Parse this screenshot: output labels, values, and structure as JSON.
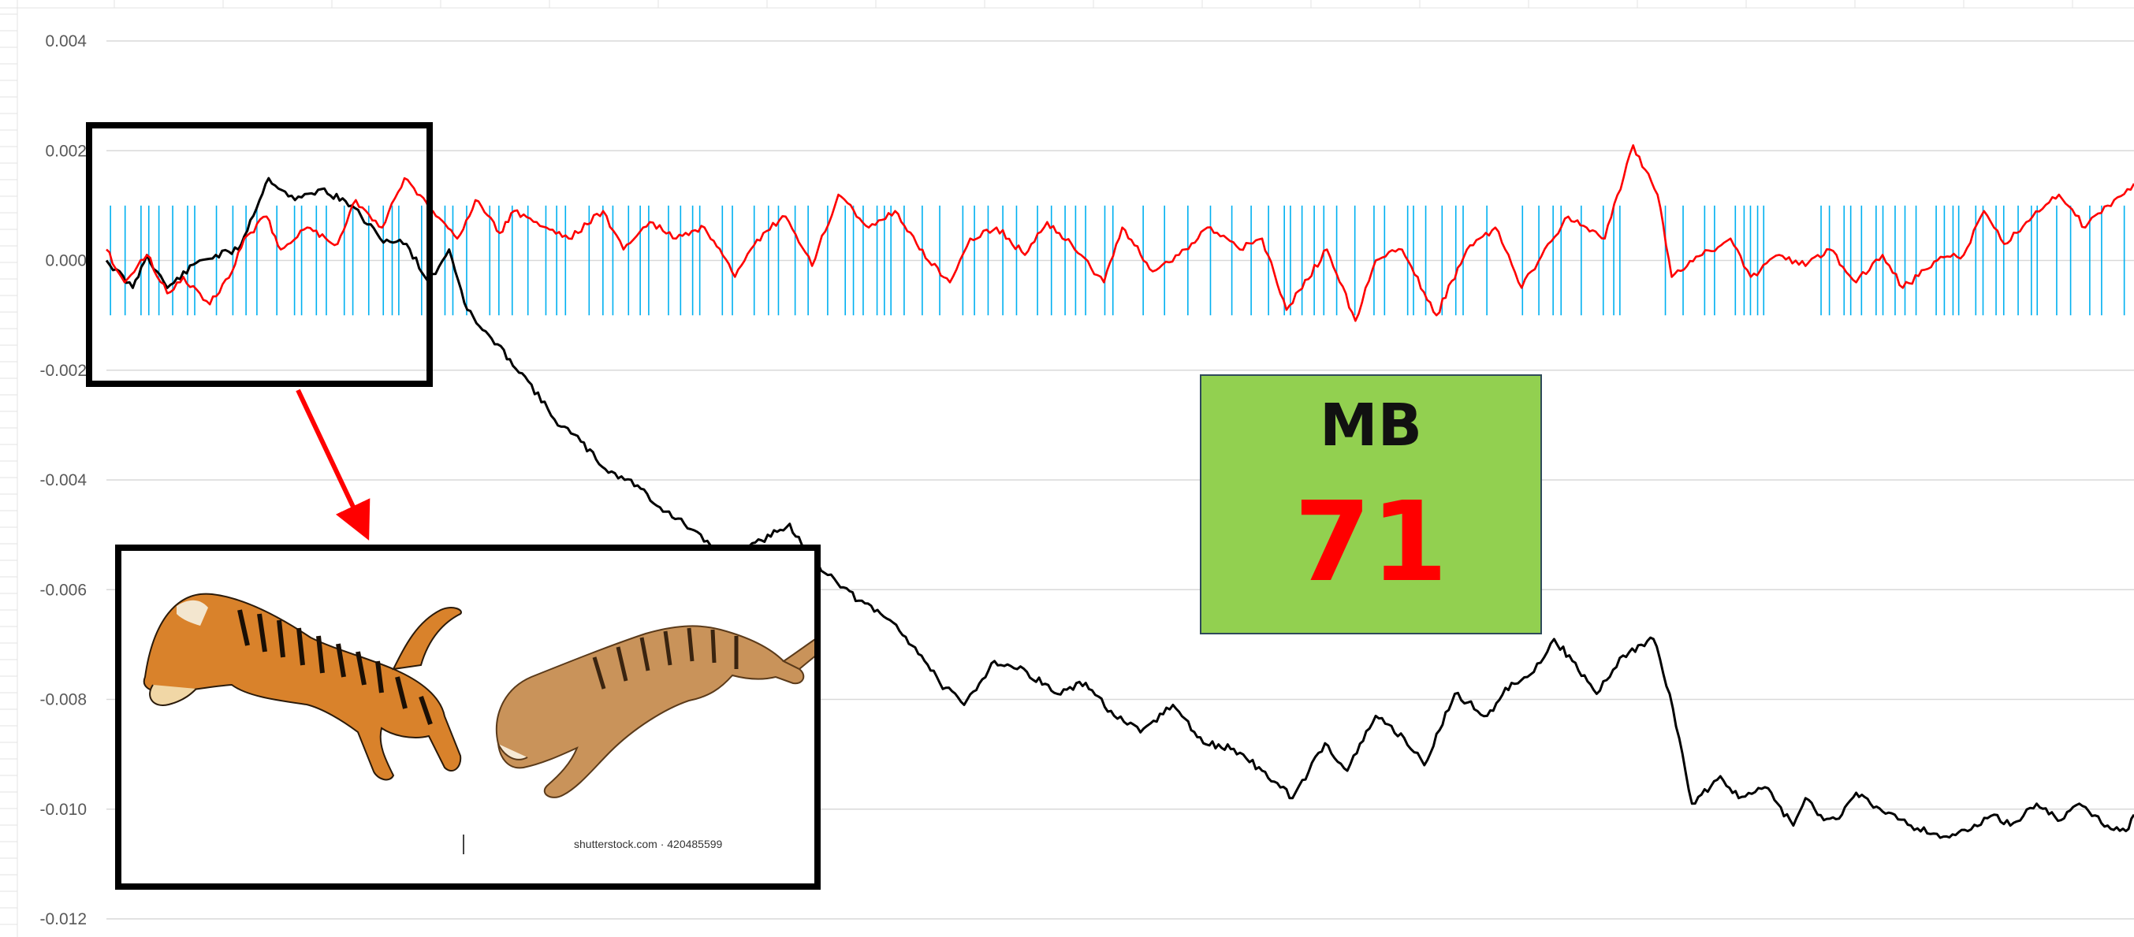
{
  "chart_data": {
    "type": "line",
    "ylim": [
      -0.012,
      0.004
    ],
    "y_ticks": [
      "0.004",
      "0.002",
      "0.000",
      "-0.002",
      "-0.004",
      "-0.006",
      "-0.008",
      "-0.010",
      "-0.012"
    ],
    "y_tick_values": [
      0.004,
      0.002,
      0.0,
      -0.002,
      -0.004,
      -0.006,
      -0.008,
      -0.01,
      -0.012
    ],
    "x_range": [
      0,
      100
    ],
    "grid": true,
    "series": [
      {
        "key": "black_line",
        "color": "#000000",
        "x": [
          0,
          1.3,
          2.0,
          3.0,
          4.6,
          6.5,
          8.0,
          9.3,
          10.6,
          12.1,
          13.5,
          14.8,
          15.9,
          16.9,
          17.8,
          18.4,
          19.9,
          20.8,
          22.1,
          23.4,
          24.6,
          26.2,
          27.3,
          28.5,
          29.8,
          31.1,
          32.3,
          33.7,
          34.6,
          35.9,
          37.1,
          38.8,
          40.2,
          41.1,
          42.3,
          43.8,
          45.4,
          46.9,
          48.3,
          49.7,
          51.0,
          52.6,
          54.1,
          55.6,
          57.0,
          58.5,
          60.1,
          61.2,
          62.6,
          64.0,
          65.0,
          66.5,
          68.1,
          69.3,
          70.4,
          71.4,
          72.3,
          73.5,
          74.8,
          76.3,
          77.1,
          78.2,
          79.6,
          80.5,
          81.8,
          83.2,
          83.8,
          84.7,
          85.6,
          86.3,
          87.0,
          88.2,
          89.0,
          90.6,
          91.8,
          93.1,
          93.9,
          95.2,
          96.4,
          97.3,
          98.7,
          99.6,
          100
        ],
        "y": [
          0.0,
          -0.0005,
          0.0001,
          -0.0005,
          0.0,
          0.0002,
          0.0015,
          0.0011,
          0.0013,
          0.001,
          0.0004,
          0.0003,
          -0.0004,
          0.0002,
          -0.0009,
          -0.0012,
          -0.0018,
          -0.0022,
          -0.0029,
          -0.0033,
          -0.0038,
          -0.0041,
          -0.0045,
          -0.0048,
          -0.0052,
          -0.0054,
          -0.0051,
          -0.0048,
          -0.0054,
          -0.0058,
          -0.0062,
          -0.0066,
          -0.0072,
          -0.0077,
          -0.0081,
          -0.0073,
          -0.0075,
          -0.0079,
          -0.0077,
          -0.0083,
          -0.0086,
          -0.0081,
          -0.0088,
          -0.0089,
          -0.0093,
          -0.0098,
          -0.0088,
          -0.0093,
          -0.0083,
          -0.0087,
          -0.0092,
          -0.0079,
          -0.0083,
          -0.0077,
          -0.0075,
          -0.0069,
          -0.0073,
          -0.0079,
          -0.0072,
          -0.0069,
          -0.0079,
          -0.0099,
          -0.0094,
          -0.0098,
          -0.0096,
          -0.0103,
          -0.0098,
          -0.0102,
          -0.0101,
          -0.0097,
          -0.0099,
          -0.0101,
          -0.0103,
          -0.0105,
          -0.0104,
          -0.0101,
          -0.0103,
          -0.0099,
          -0.0102,
          -0.0099,
          -0.0103,
          -0.0104,
          -0.0101
        ]
      },
      {
        "key": "red_line",
        "color": "#ff0000",
        "x": [
          0,
          0.9,
          2.0,
          3.0,
          3.8,
          5.1,
          6.2,
          6.8,
          7.9,
          8.6,
          9.9,
          11.4,
          12.3,
          13.6,
          14.7,
          16.1,
          17.3,
          18.2,
          19.4,
          20.1,
          21.7,
          22.8,
          24.5,
          25.5,
          26.8,
          28.1,
          29.5,
          31.0,
          32.4,
          33.5,
          34.8,
          36.1,
          37.6,
          38.9,
          40.1,
          41.6,
          42.6,
          43.9,
          45.3,
          46.4,
          47.6,
          49.2,
          50.1,
          51.6,
          52.9,
          54.3,
          55.9,
          57.0,
          58.2,
          60.2,
          61.6,
          62.6,
          63.9,
          65.6,
          67.1,
          68.5,
          69.8,
          71.1,
          72.1,
          73.9,
          75.3,
          76.5,
          77.2,
          78.7,
          80.1,
          81.1,
          82.5,
          83.8,
          85.0,
          86.3,
          87.6,
          88.6,
          90.3,
          91.6,
          92.6,
          93.6,
          95.0,
          96.3,
          97.6,
          98.7,
          100
        ],
        "y": [
          0.0002,
          -0.0004,
          0.0001,
          -0.0006,
          -0.0003,
          -0.0008,
          -0.0002,
          0.0004,
          0.0008,
          0.0002,
          0.0006,
          0.0003,
          0.0011,
          0.0006,
          0.0015,
          0.0009,
          0.0004,
          0.0011,
          0.0005,
          0.0009,
          0.0006,
          0.0004,
          0.0009,
          0.0002,
          0.0007,
          0.0004,
          0.0006,
          -0.0003,
          0.0005,
          0.0008,
          -0.0001,
          0.0012,
          0.0006,
          0.0009,
          0.0002,
          -0.0004,
          0.0004,
          0.0006,
          0.0001,
          0.0007,
          0.0003,
          -0.0004,
          0.0006,
          -0.0002,
          0.0001,
          0.0006,
          0.0002,
          0.0004,
          -0.0009,
          0.0002,
          -0.0011,
          0.0,
          0.0002,
          -0.001,
          0.0002,
          0.0006,
          -0.0005,
          0.0003,
          0.0008,
          0.0004,
          0.0021,
          0.0012,
          -0.0003,
          0.0001,
          0.0004,
          -0.0003,
          0.0001,
          -0.0001,
          0.0002,
          -0.0004,
          0.0001,
          -0.0005,
          0.0,
          0.0001,
          0.0009,
          0.0003,
          0.0008,
          0.0012,
          0.0006,
          0.001,
          0.0014
        ]
      },
      {
        "key": "blue_bars",
        "type": "vertical_bars",
        "color": "#00b0f0",
        "y_top": 0.001,
        "y_bottom": -0.001
      }
    ]
  },
  "annotation": {
    "mb_label": "MB",
    "mb_value": "71",
    "mb_box_color": "#92d050",
    "mb_value_color": "#ff0000",
    "callout_arrow_color": "#ff0000",
    "highlight_box_color": "#000000",
    "image_credit": "shutterstock.com · 420485599",
    "images": [
      "tiger-leaping-striped",
      "tiger-leaping-pale"
    ]
  }
}
